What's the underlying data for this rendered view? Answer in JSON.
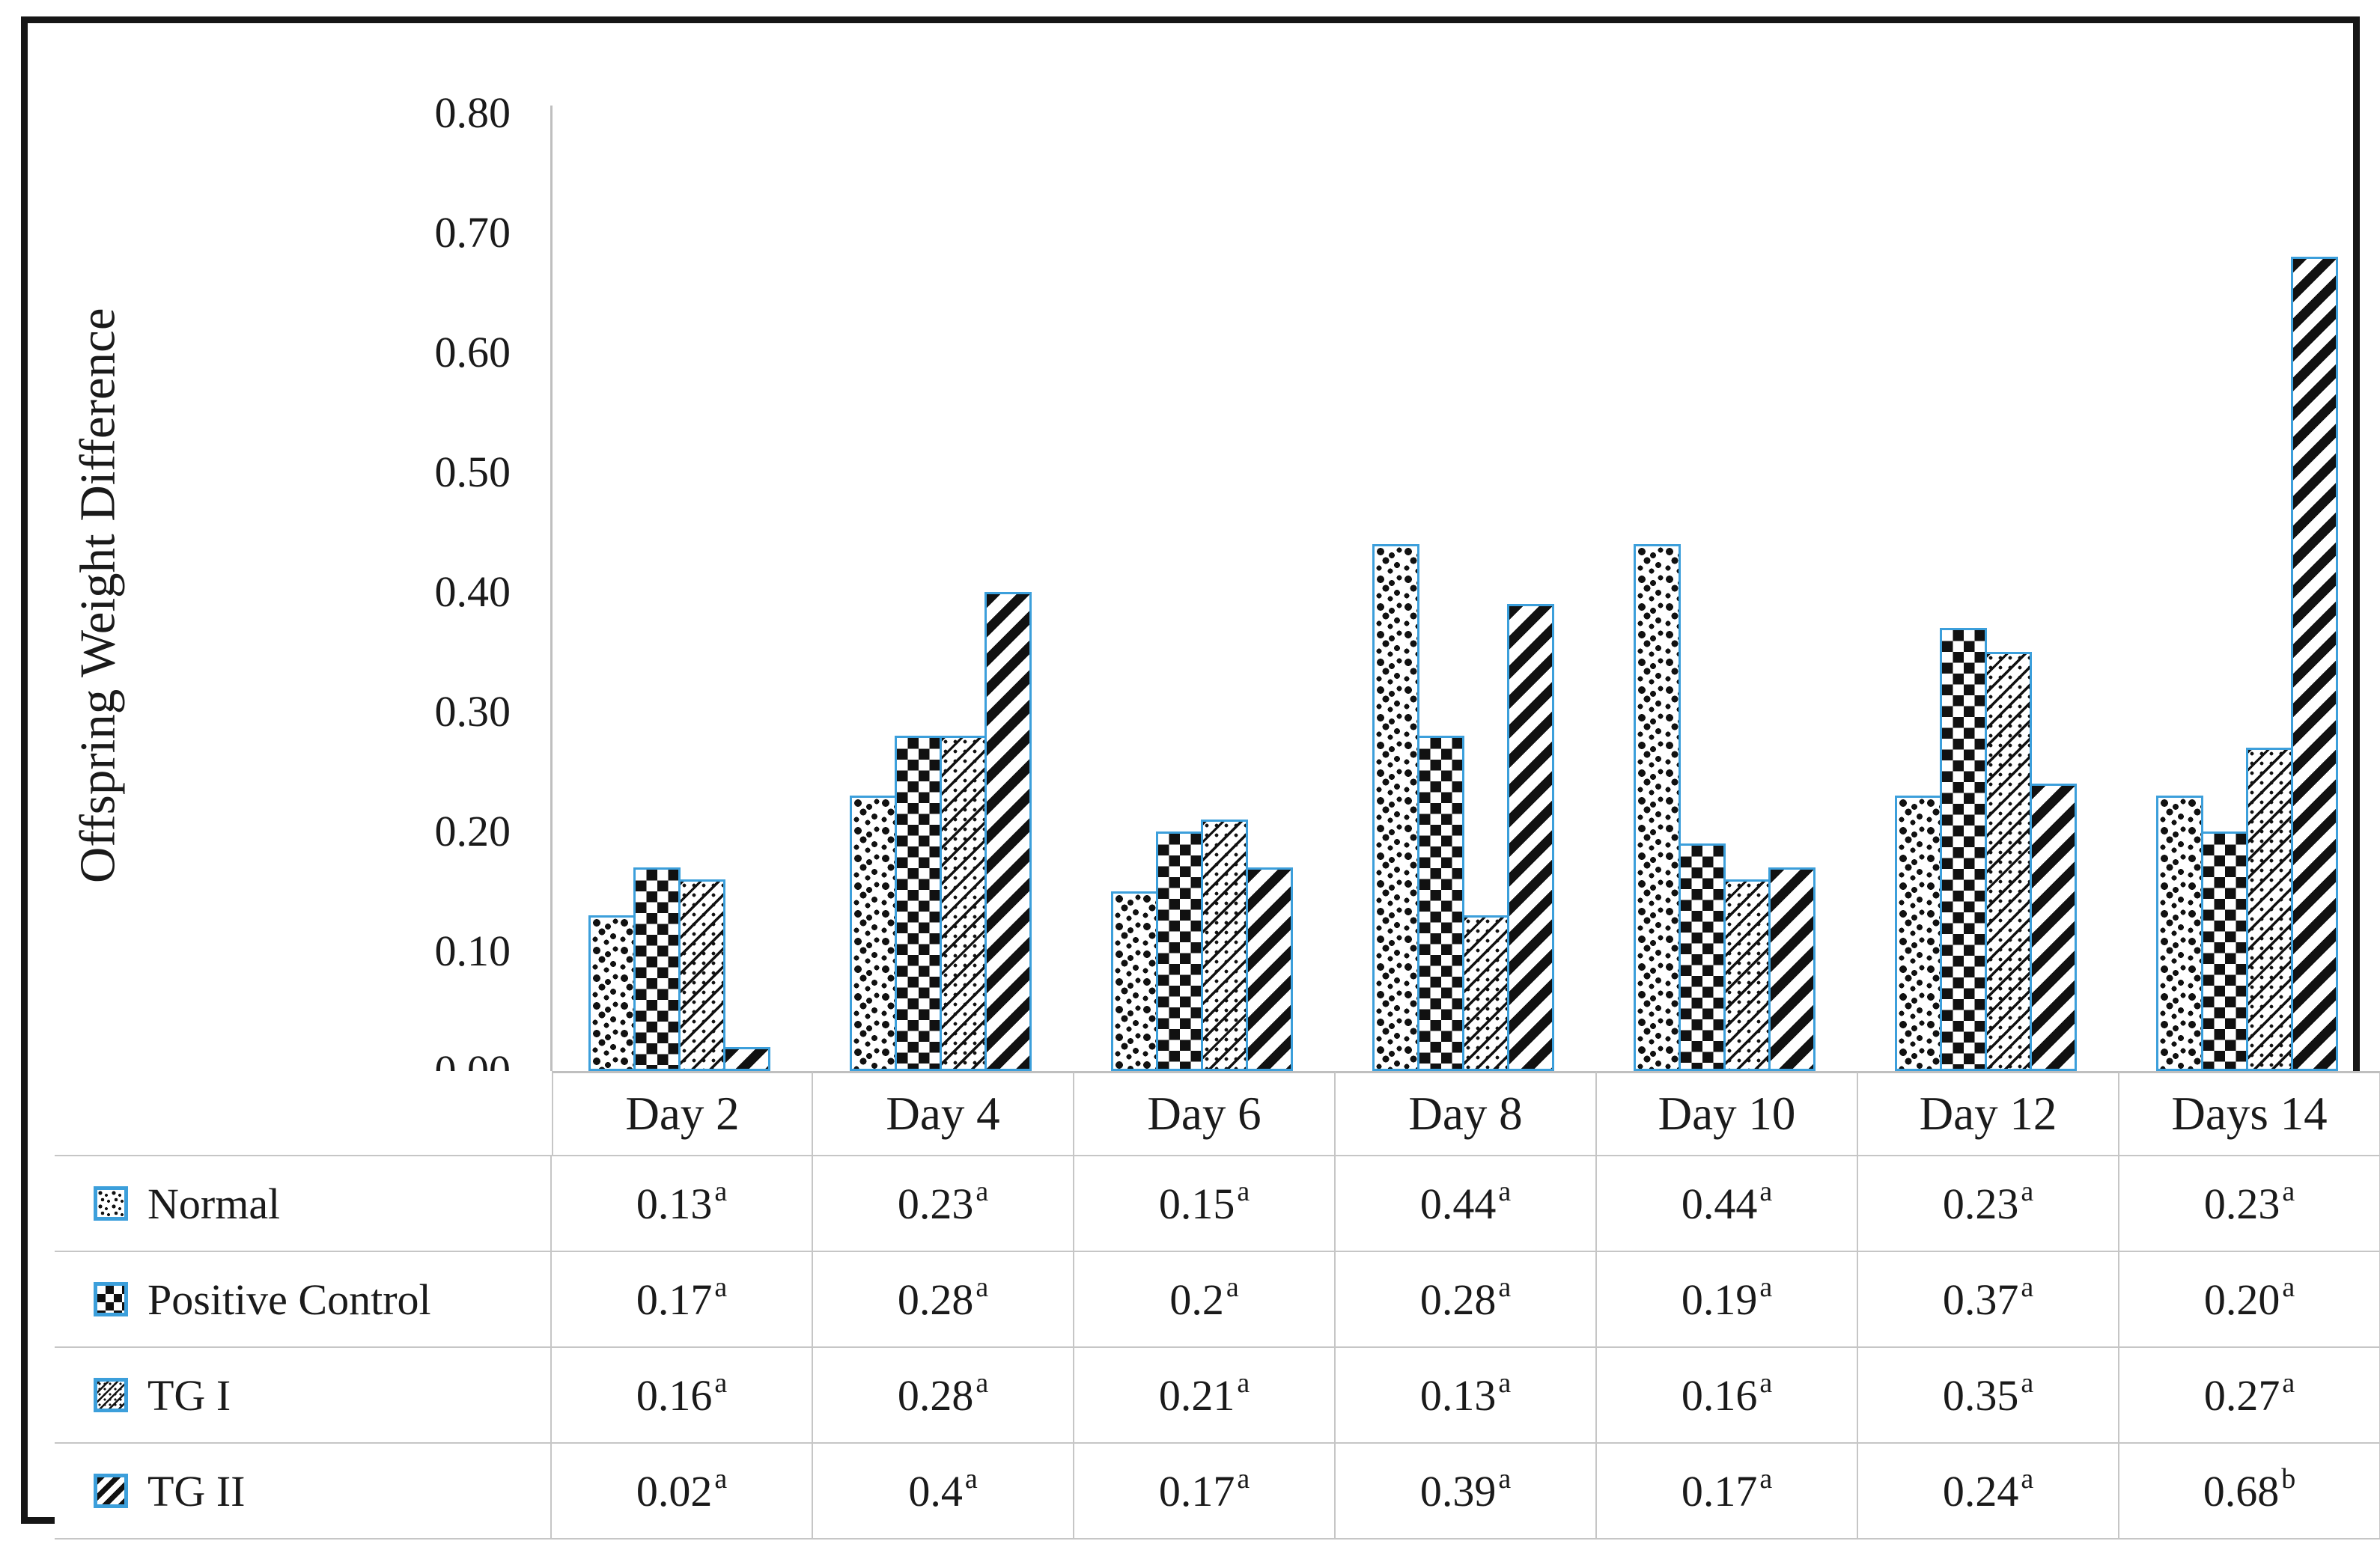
{
  "chart_data": {
    "type": "bar",
    "title": "",
    "ylabel": "Offspring Weight Difference",
    "xlabel": "",
    "ylim": [
      0,
      0.8
    ],
    "ytick_step": 0.1,
    "ytick_labels": [
      "0.80",
      "0.70",
      "0.60",
      "0.50",
      "0.40",
      "0.30",
      "0.20",
      "0.10",
      "0.00"
    ],
    "grid": false,
    "legend_position": "table-left-column",
    "categories": [
      "Day 2",
      "Day 4",
      "Day 6",
      "Day 8",
      "Day 10",
      "Day 12",
      "Days 14"
    ],
    "series": [
      {
        "name": "Normal",
        "pattern": "dots",
        "values": [
          0.13,
          0.23,
          0.15,
          0.44,
          0.44,
          0.23,
          0.23
        ],
        "cell_labels": [
          "0.13",
          "0.23",
          "0.15",
          "0.44",
          "0.44",
          "0.23",
          "0.23"
        ],
        "superscripts": [
          "a",
          "a",
          "a",
          "a",
          "a",
          "a",
          "a"
        ]
      },
      {
        "name": "Positive Control",
        "pattern": "checker",
        "values": [
          0.17,
          0.28,
          0.2,
          0.28,
          0.19,
          0.37,
          0.2
        ],
        "cell_labels": [
          "0.17",
          "0.28",
          "0.2",
          "0.28",
          "0.19",
          "0.37",
          "0.20"
        ],
        "superscripts": [
          "a",
          "a",
          "a",
          "a",
          "a",
          "a",
          "a"
        ]
      },
      {
        "name": "TG I",
        "pattern": "thin-diagonal",
        "values": [
          0.16,
          0.28,
          0.21,
          0.13,
          0.16,
          0.35,
          0.27
        ],
        "cell_labels": [
          "0.16",
          "0.28",
          "0.21",
          "0.13",
          "0.16",
          "0.35",
          "0.27"
        ],
        "superscripts": [
          "a",
          "a",
          "a",
          "a",
          "a",
          "a",
          "a"
        ]
      },
      {
        "name": "TG II",
        "pattern": "thick-diagonal",
        "values": [
          0.02,
          0.4,
          0.17,
          0.39,
          0.17,
          0.24,
          0.68
        ],
        "cell_labels": [
          "0.02",
          "0.4",
          "0.17",
          "0.39",
          "0.17",
          "0.24",
          "0.68"
        ],
        "superscripts": [
          "a",
          "a",
          "a",
          "a",
          "a",
          "a",
          "b"
        ]
      }
    ],
    "colors": {
      "bar_outline": "#3C9FDB",
      "pattern_fill": "#000000",
      "axis_line": "#BFBFBF",
      "table_border": "#C6C6C6",
      "frame": "#161616",
      "text": "#1A1A1A",
      "background": "#FFFFFF"
    }
  }
}
